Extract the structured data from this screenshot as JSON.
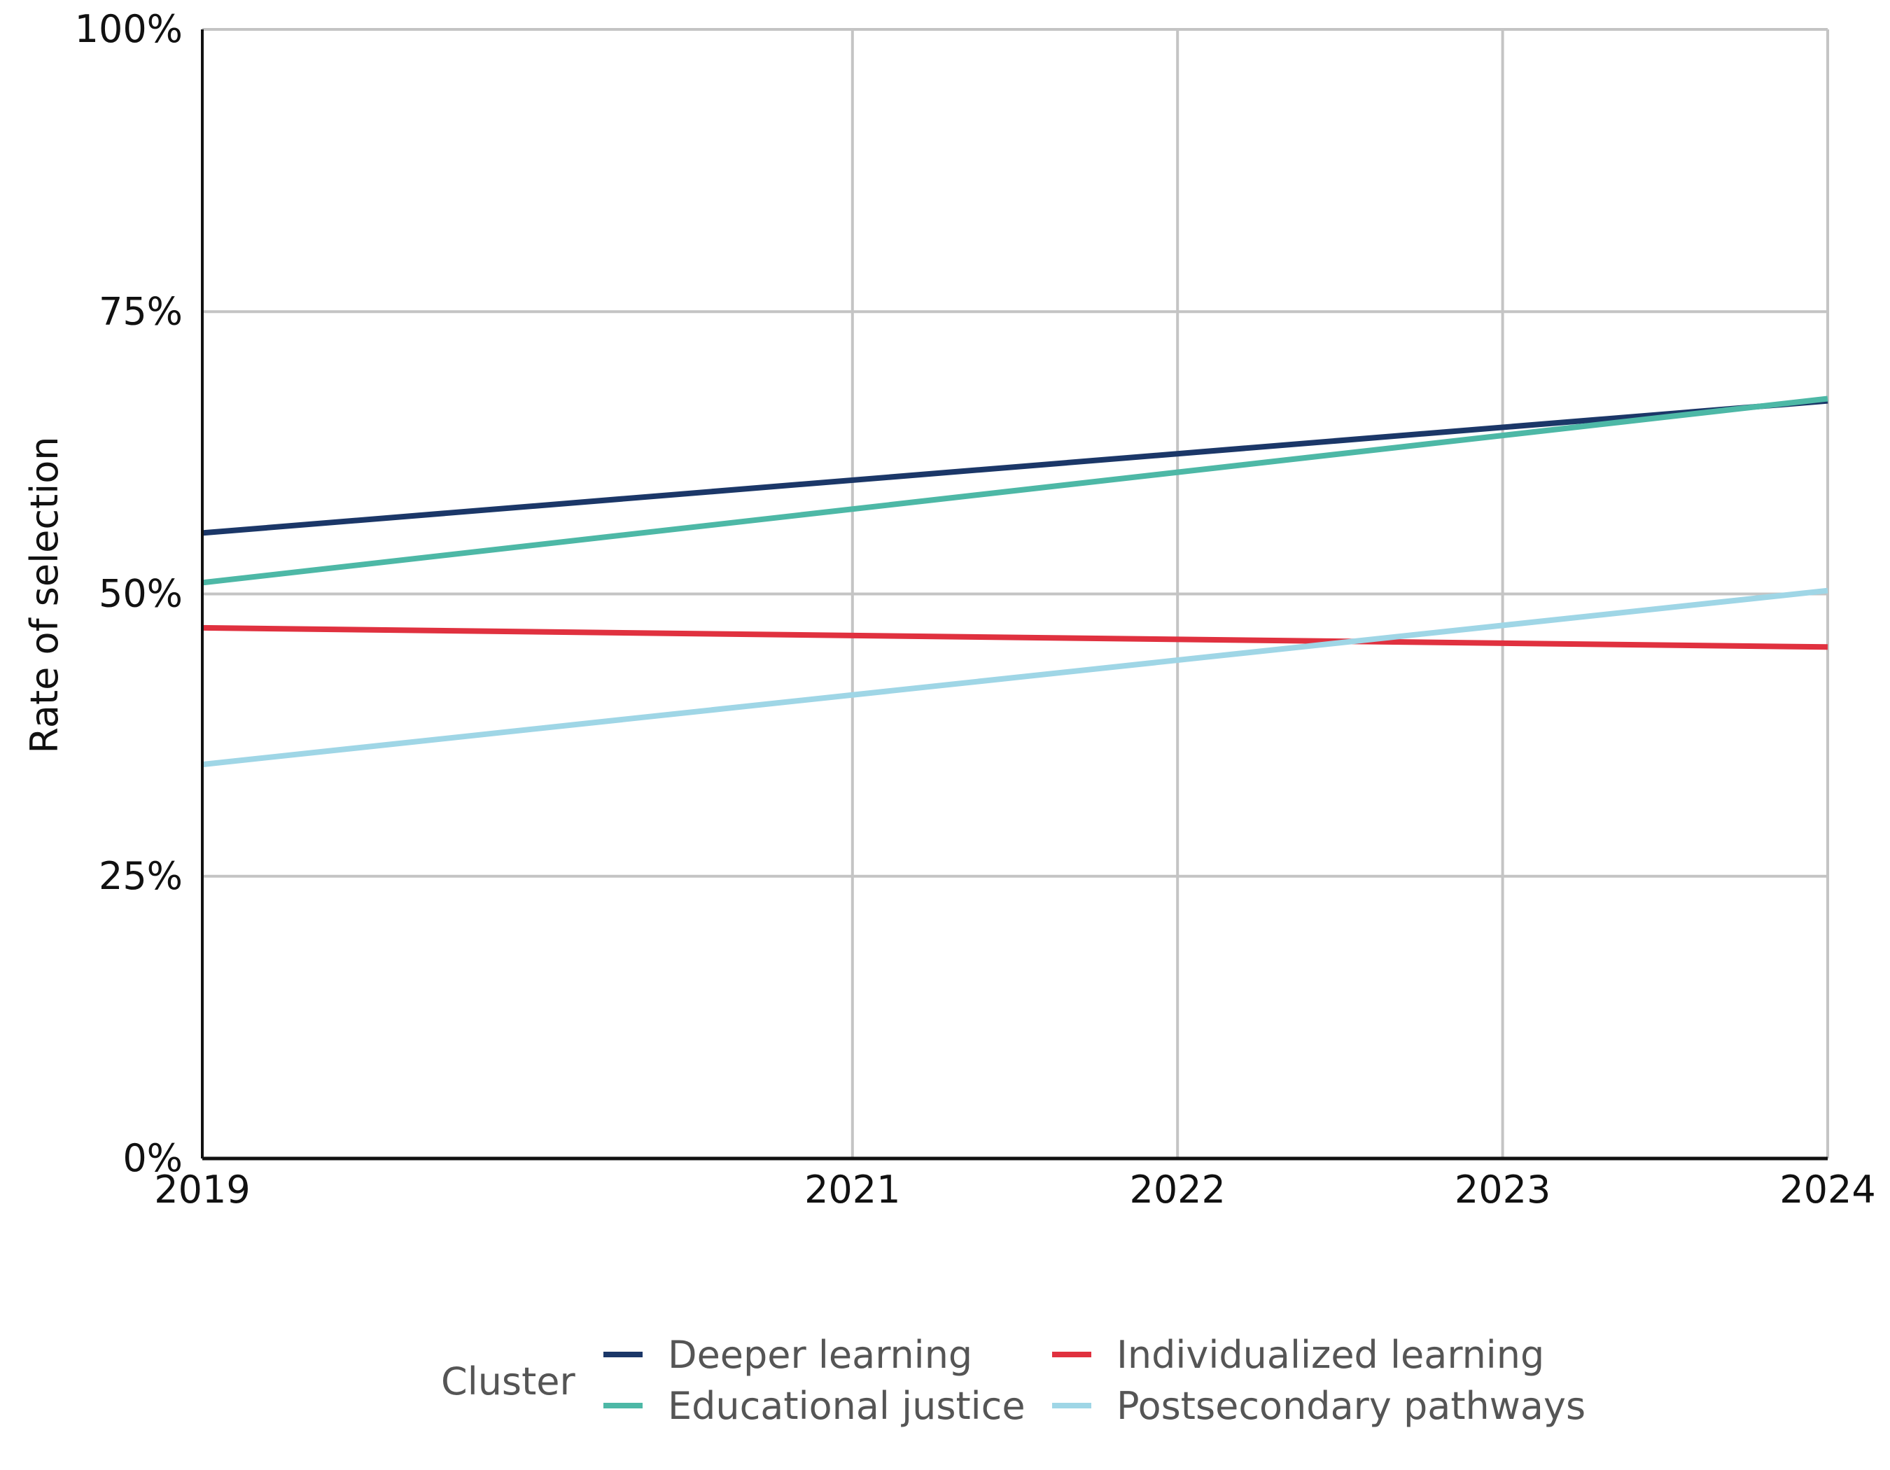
{
  "chart_data": {
    "type": "line",
    "title": "",
    "xlabel": "",
    "ylabel": "Rate of selection",
    "x": [
      2019,
      2024
    ],
    "x_ticks": [
      2019,
      2021,
      2022,
      2023,
      2024
    ],
    "x_tick_labels": [
      "2019",
      "2021",
      "2022",
      "2023",
      "2024"
    ],
    "xlim": [
      2019,
      2024
    ],
    "y_ticks": [
      0,
      25,
      50,
      75,
      100
    ],
    "y_tick_labels": [
      "0%",
      "25%",
      "50%",
      "75%",
      "100%"
    ],
    "ylim": [
      0,
      100
    ],
    "grid": true,
    "legend": {
      "title": "Cluster",
      "placement": "bottom"
    },
    "series": [
      {
        "name": "Deeper learning",
        "color": "#1b3768",
        "values": [
          55.4,
          67.1
        ]
      },
      {
        "name": "Educational justice",
        "color": "#4db8a6",
        "values": [
          51.0,
          67.3
        ]
      },
      {
        "name": "Individualized learning",
        "color": "#e0313f",
        "values": [
          47.0,
          45.3
        ]
      },
      {
        "name": "Postsecondary pathways",
        "color": "#9fd6e6",
        "values": [
          34.9,
          50.3
        ]
      }
    ]
  }
}
